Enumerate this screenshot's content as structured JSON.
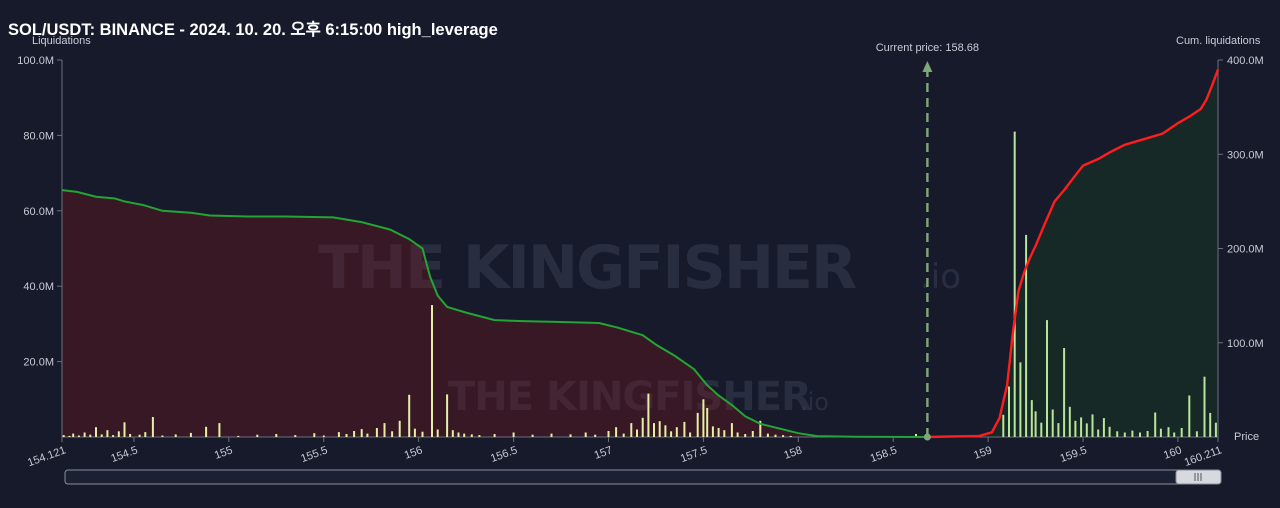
{
  "title": "SOL/USDT: BINANCE - 2024. 10. 20. 오후 6:15:00 high_leverage",
  "watermark": {
    "brand": "THE KINGFISHER",
    "suffix": ".io"
  },
  "chart_data": {
    "type": "bar",
    "title": "SOL/USDT: BINANCE - 2024. 10. 20. 오후 6:15:00 high_leverage",
    "xlabel": "Price",
    "ylabel": "Liquidations",
    "y2label": "Cum. liquidations",
    "xlim": [
      154.121,
      160.211
    ],
    "ylim": [
      0,
      100000000
    ],
    "y2lim": [
      0,
      400000000
    ],
    "x_ticks": [
      "154.121",
      "154.5",
      "155",
      "155.5",
      "156",
      "156.5",
      "157",
      "157.5",
      "158",
      "158.5",
      "159",
      "159.5",
      "160",
      "160.211"
    ],
    "x_tick_values": [
      154.121,
      154.5,
      155,
      155.5,
      156,
      156.5,
      157,
      157.5,
      158,
      158.5,
      159,
      159.5,
      160,
      160.211
    ],
    "y_ticks": [
      "20.0M",
      "40.0M",
      "60.0M",
      "80.0M",
      "100.0M"
    ],
    "y_tick_values": [
      20000000,
      40000000,
      60000000,
      80000000,
      100000000
    ],
    "y2_ticks": [
      "100.0M",
      "200.0M",
      "300.0M",
      "400.0M"
    ],
    "y2_tick_values": [
      100000000,
      200000000,
      300000000,
      400000000
    ],
    "current_price": {
      "label": "Current price: 158.68",
      "value": 158.68
    },
    "colors": {
      "short_side": "#e5f0a6",
      "long_side": "#b9e59a",
      "cum_long": "#22a534",
      "cum_short": "#ff1d1d",
      "current_price": "#7fa878"
    },
    "bars": [
      {
        "x": 154.13,
        "y": 500000
      },
      {
        "x": 154.16,
        "y": 300000
      },
      {
        "x": 154.18,
        "y": 900000
      },
      {
        "x": 154.21,
        "y": 400000
      },
      {
        "x": 154.24,
        "y": 1200000
      },
      {
        "x": 154.27,
        "y": 600000
      },
      {
        "x": 154.3,
        "y": 2600000
      },
      {
        "x": 154.33,
        "y": 700000
      },
      {
        "x": 154.36,
        "y": 1800000
      },
      {
        "x": 154.39,
        "y": 500000
      },
      {
        "x": 154.42,
        "y": 1500000
      },
      {
        "x": 154.45,
        "y": 3900000
      },
      {
        "x": 154.48,
        "y": 800000
      },
      {
        "x": 154.53,
        "y": 600000
      },
      {
        "x": 154.56,
        "y": 1300000
      },
      {
        "x": 154.6,
        "y": 5300000
      },
      {
        "x": 154.65,
        "y": 400000
      },
      {
        "x": 154.72,
        "y": 700000
      },
      {
        "x": 154.8,
        "y": 1100000
      },
      {
        "x": 154.88,
        "y": 2700000
      },
      {
        "x": 154.95,
        "y": 3700000
      },
      {
        "x": 155.05,
        "y": 300000
      },
      {
        "x": 155.15,
        "y": 600000
      },
      {
        "x": 155.25,
        "y": 800000
      },
      {
        "x": 155.35,
        "y": 500000
      },
      {
        "x": 155.45,
        "y": 1000000
      },
      {
        "x": 155.5,
        "y": 400000
      },
      {
        "x": 155.58,
        "y": 1300000
      },
      {
        "x": 155.62,
        "y": 800000
      },
      {
        "x": 155.66,
        "y": 1600000
      },
      {
        "x": 155.7,
        "y": 2100000
      },
      {
        "x": 155.73,
        "y": 900000
      },
      {
        "x": 155.78,
        "y": 2400000
      },
      {
        "x": 155.82,
        "y": 3700000
      },
      {
        "x": 155.86,
        "y": 1500000
      },
      {
        "x": 155.9,
        "y": 4300000
      },
      {
        "x": 155.95,
        "y": 11200000
      },
      {
        "x": 155.98,
        "y": 2200000
      },
      {
        "x": 156.02,
        "y": 1400000
      },
      {
        "x": 156.07,
        "y": 35000000
      },
      {
        "x": 156.1,
        "y": 2000000
      },
      {
        "x": 156.15,
        "y": 11300000
      },
      {
        "x": 156.18,
        "y": 1800000
      },
      {
        "x": 156.21,
        "y": 1200000
      },
      {
        "x": 156.24,
        "y": 900000
      },
      {
        "x": 156.28,
        "y": 700000
      },
      {
        "x": 156.32,
        "y": 500000
      },
      {
        "x": 156.4,
        "y": 800000
      },
      {
        "x": 156.5,
        "y": 1200000
      },
      {
        "x": 156.6,
        "y": 600000
      },
      {
        "x": 156.7,
        "y": 900000
      },
      {
        "x": 156.8,
        "y": 700000
      },
      {
        "x": 156.88,
        "y": 1200000
      },
      {
        "x": 156.93,
        "y": 600000
      },
      {
        "x": 157.0,
        "y": 1600000
      },
      {
        "x": 157.04,
        "y": 2600000
      },
      {
        "x": 157.08,
        "y": 900000
      },
      {
        "x": 157.12,
        "y": 3700000
      },
      {
        "x": 157.15,
        "y": 2000000
      },
      {
        "x": 157.18,
        "y": 5100000
      },
      {
        "x": 157.21,
        "y": 11500000
      },
      {
        "x": 157.24,
        "y": 3700000
      },
      {
        "x": 157.27,
        "y": 4200000
      },
      {
        "x": 157.3,
        "y": 3100000
      },
      {
        "x": 157.33,
        "y": 1500000
      },
      {
        "x": 157.36,
        "y": 2600000
      },
      {
        "x": 157.4,
        "y": 4000000
      },
      {
        "x": 157.43,
        "y": 1200000
      },
      {
        "x": 157.47,
        "y": 6400000
      },
      {
        "x": 157.5,
        "y": 10000000
      },
      {
        "x": 157.52,
        "y": 7700000
      },
      {
        "x": 157.55,
        "y": 2800000
      },
      {
        "x": 157.58,
        "y": 2400000
      },
      {
        "x": 157.61,
        "y": 1800000
      },
      {
        "x": 157.65,
        "y": 3700000
      },
      {
        "x": 157.68,
        "y": 1200000
      },
      {
        "x": 157.72,
        "y": 800000
      },
      {
        "x": 157.76,
        "y": 1600000
      },
      {
        "x": 157.8,
        "y": 4300000
      },
      {
        "x": 157.84,
        "y": 900000
      },
      {
        "x": 157.88,
        "y": 600000
      },
      {
        "x": 157.92,
        "y": 500000
      },
      {
        "x": 157.96,
        "y": 300000
      },
      {
        "x": 158.62,
        "y": 800000
      },
      {
        "x": 159.08,
        "y": 5900000
      },
      {
        "x": 159.11,
        "y": 13400000
      },
      {
        "x": 159.14,
        "y": 81000000
      },
      {
        "x": 159.17,
        "y": 19800000
      },
      {
        "x": 159.2,
        "y": 53600000
      },
      {
        "x": 159.23,
        "y": 9800000
      },
      {
        "x": 159.25,
        "y": 6800000
      },
      {
        "x": 159.28,
        "y": 3800000
      },
      {
        "x": 159.31,
        "y": 31000000
      },
      {
        "x": 159.34,
        "y": 7300000
      },
      {
        "x": 159.37,
        "y": 3700000
      },
      {
        "x": 159.4,
        "y": 23600000
      },
      {
        "x": 159.43,
        "y": 8000000
      },
      {
        "x": 159.46,
        "y": 4300000
      },
      {
        "x": 159.49,
        "y": 5200000
      },
      {
        "x": 159.52,
        "y": 3600000
      },
      {
        "x": 159.55,
        "y": 6000000
      },
      {
        "x": 159.58,
        "y": 2000000
      },
      {
        "x": 159.61,
        "y": 5000000
      },
      {
        "x": 159.64,
        "y": 2700000
      },
      {
        "x": 159.68,
        "y": 1500000
      },
      {
        "x": 159.72,
        "y": 1200000
      },
      {
        "x": 159.76,
        "y": 1700000
      },
      {
        "x": 159.8,
        "y": 1200000
      },
      {
        "x": 159.84,
        "y": 1600000
      },
      {
        "x": 159.88,
        "y": 6500000
      },
      {
        "x": 159.91,
        "y": 2200000
      },
      {
        "x": 159.95,
        "y": 2600000
      },
      {
        "x": 159.98,
        "y": 1200000
      },
      {
        "x": 160.02,
        "y": 2400000
      },
      {
        "x": 160.06,
        "y": 11000000
      },
      {
        "x": 160.1,
        "y": 1500000
      },
      {
        "x": 160.14,
        "y": 16000000
      },
      {
        "x": 160.17,
        "y": 6400000
      },
      {
        "x": 160.2,
        "y": 3800000
      }
    ],
    "cum_long": [
      [
        154.121,
        262000000
      ],
      [
        154.2,
        260000000
      ],
      [
        154.3,
        255000000
      ],
      [
        154.4,
        253000000
      ],
      [
        154.45,
        250000000
      ],
      [
        154.55,
        246000000
      ],
      [
        154.65,
        240000000
      ],
      [
        154.8,
        238000000
      ],
      [
        154.9,
        235000000
      ],
      [
        155.1,
        234000000
      ],
      [
        155.3,
        234000000
      ],
      [
        155.55,
        233000000
      ],
      [
        155.7,
        228000000
      ],
      [
        155.85,
        220000000
      ],
      [
        155.95,
        210000000
      ],
      [
        156.02,
        200000000
      ],
      [
        156.06,
        170000000
      ],
      [
        156.1,
        150000000
      ],
      [
        156.15,
        138000000
      ],
      [
        156.25,
        132000000
      ],
      [
        156.4,
        124000000
      ],
      [
        156.55,
        123000000
      ],
      [
        156.75,
        122000000
      ],
      [
        156.95,
        121000000
      ],
      [
        157.05,
        116000000
      ],
      [
        157.18,
        108000000
      ],
      [
        157.25,
        98000000
      ],
      [
        157.35,
        86000000
      ],
      [
        157.45,
        72000000
      ],
      [
        157.52,
        55000000
      ],
      [
        157.58,
        44000000
      ],
      [
        157.65,
        34000000
      ],
      [
        157.72,
        22000000
      ],
      [
        157.8,
        14000000
      ],
      [
        157.9,
        9000000
      ],
      [
        158.0,
        4000000
      ],
      [
        158.1,
        1000000
      ],
      [
        158.3,
        300000
      ],
      [
        158.68,
        0
      ]
    ],
    "cum_short": [
      [
        158.68,
        0
      ],
      [
        158.8,
        500000
      ],
      [
        158.95,
        1000000
      ],
      [
        159.02,
        5000000
      ],
      [
        159.06,
        20000000
      ],
      [
        159.1,
        55000000
      ],
      [
        159.13,
        110000000
      ],
      [
        159.16,
        155000000
      ],
      [
        159.19,
        175000000
      ],
      [
        159.22,
        190000000
      ],
      [
        159.25,
        203000000
      ],
      [
        159.3,
        227000000
      ],
      [
        159.35,
        250000000
      ],
      [
        159.4,
        262000000
      ],
      [
        159.45,
        275000000
      ],
      [
        159.5,
        288000000
      ],
      [
        159.58,
        295000000
      ],
      [
        159.64,
        302000000
      ],
      [
        159.72,
        310000000
      ],
      [
        159.82,
        316000000
      ],
      [
        159.92,
        322000000
      ],
      [
        160.0,
        333000000
      ],
      [
        160.06,
        340000000
      ],
      [
        160.12,
        348000000
      ],
      [
        160.15,
        358000000
      ],
      [
        160.18,
        373000000
      ],
      [
        160.211,
        390000000
      ]
    ]
  }
}
